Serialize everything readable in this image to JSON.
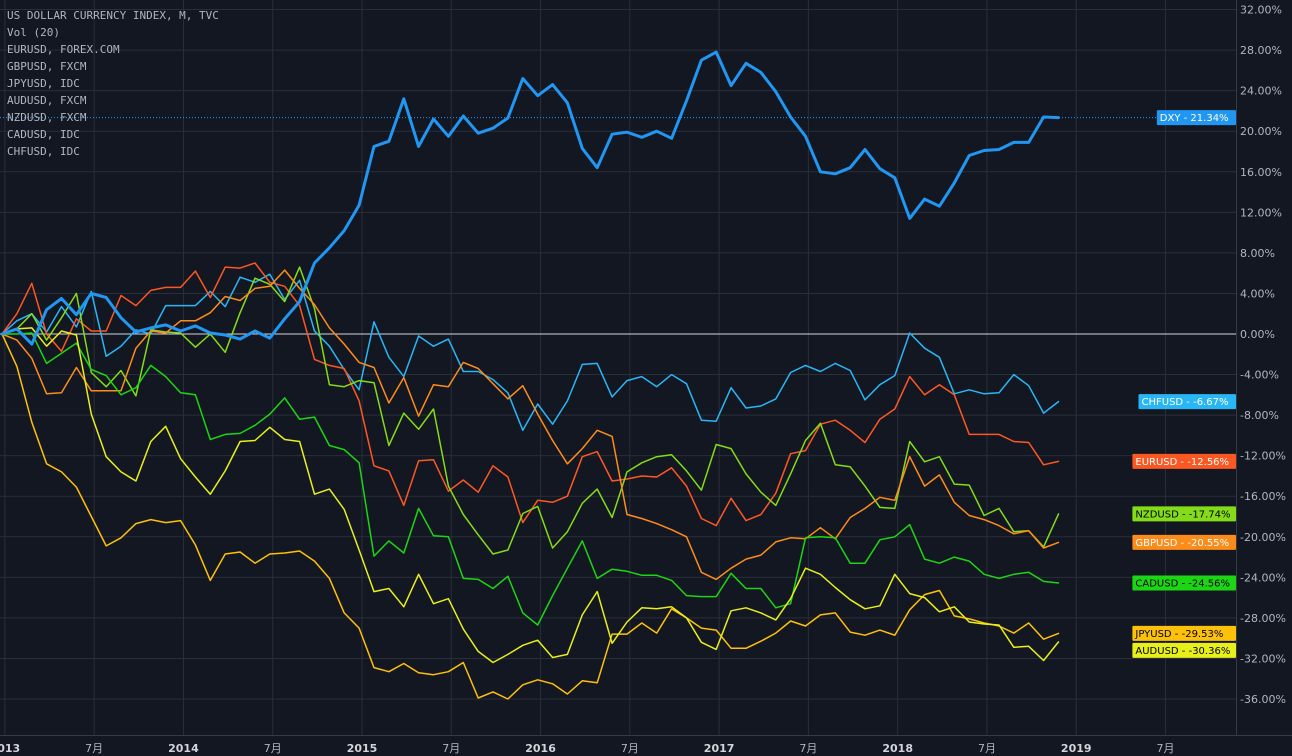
{
  "legend": {
    "lines": [
      "US DOLLAR CURRENCY INDEX, M, TVC",
      "Vol (20)",
      "EURUSD, FOREX.COM",
      "GBPUSD, FXCM",
      "JPYUSD, IDC",
      "AUDUSD, FXCM",
      "NZDUSD, FXCM",
      "CADUSD, IDC",
      "CHFUSD, IDC"
    ]
  },
  "chart_data": {
    "type": "line",
    "title": "US DOLLAR CURRENCY INDEX, M, TVC",
    "x_unit": "month",
    "x_start": "2012-12",
    "x_tick_labels": [
      "2013",
      "7月",
      "2014",
      "7月",
      "2015",
      "7月",
      "2016",
      "7月",
      "2017",
      "7月",
      "2018",
      "7月",
      "2019",
      "7月"
    ],
    "ylim": [
      -38,
      34
    ],
    "y_ticks": [
      32,
      28,
      24,
      20,
      16,
      12,
      8,
      4,
      0,
      -4,
      -8,
      -12,
      -16,
      -20,
      -24,
      -28,
      -32,
      -36
    ],
    "y_tick_labels": [
      "32.00%",
      "28.00%",
      "24.00%",
      "20.00%",
      "16.00%",
      "12.00%",
      "8.00%",
      "4.00%",
      "0.00%",
      "-4.00%",
      "-8.00%",
      "-12.00%",
      "-16.00%",
      "-20.00%",
      "-24.00%",
      "-28.00%",
      "-32.00%",
      "-36.00%"
    ],
    "zero_line": 0,
    "grid": true,
    "colors": {
      "background": "#131722",
      "grid": "#2a2e39",
      "zero_line": "#d1d4dc",
      "axis_text": "#b2b5be"
    },
    "series": [
      {
        "name": "DXY",
        "label": "21.34%",
        "color": "#2196f3",
        "badge_text": "#ffffff",
        "width": 3,
        "values": [
          0,
          0.5,
          -1.0,
          2.4,
          3.5,
          1.9,
          4.0,
          3.6,
          1.6,
          0.2,
          0.6,
          0.9,
          0.3,
          0.8,
          0.1,
          -0.1,
          -0.5,
          0.3,
          -0.4,
          1.5,
          3.2,
          7.0,
          8.5,
          10.2,
          12.7,
          18.5,
          19.0,
          23.2,
          18.5,
          21.2,
          19.5,
          21.5,
          19.8,
          20.3,
          21.3,
          25.2,
          23.5,
          24.6,
          22.8,
          18.3,
          16.4,
          19.7,
          19.9,
          19.4,
          20.0,
          19.3,
          23.0,
          27.0,
          27.8,
          24.5,
          26.7,
          25.8,
          23.9,
          21.4,
          19.5,
          16.0,
          15.8,
          16.4,
          18.2,
          16.3,
          15.4,
          11.4,
          13.3,
          12.6,
          14.9,
          17.6,
          18.1,
          18.2,
          18.9,
          18.9,
          21.4,
          21.34
        ]
      },
      {
        "name": "CHFUSD",
        "label": "-6.67%",
        "color": "#29b6f6",
        "badge_text": "#ffffff",
        "width": 1.5,
        "values": [
          0,
          1.3,
          2.0,
          0.2,
          2.7,
          0.7,
          4.2,
          -2.2,
          -1.2,
          0.4,
          0.0,
          2.8,
          2.8,
          2.8,
          4.2,
          2.7,
          5.6,
          5.1,
          5.9,
          3.4,
          5.3,
          0.3,
          -1.2,
          -3.5,
          -5.5,
          1.2,
          -2.3,
          -4.2,
          -0.2,
          -1.2,
          -0.5,
          -3.7,
          -3.7,
          -4.5,
          -5.8,
          -9.5,
          -6.9,
          -8.9,
          -6.6,
          -3.0,
          -2.9,
          -6.2,
          -4.6,
          -4.2,
          -5.2,
          -4.0,
          -4.9,
          -8.5,
          -8.6,
          -5.3,
          -7.3,
          -7.1,
          -6.4,
          -3.8,
          -3.1,
          -3.7,
          -2.9,
          -3.6,
          -6.5,
          -5.0,
          -4.1,
          0.1,
          -1.4,
          -2.3,
          -5.9,
          -5.5,
          -5.9,
          -5.8,
          -4.0,
          -5.1,
          -7.8,
          -6.67
        ]
      },
      {
        "name": "EURUSD",
        "label": "-12.56%",
        "color": "#ff5722",
        "badge_text": "#ffffff",
        "width": 1.5,
        "values": [
          0,
          2.0,
          5.0,
          0.0,
          -1.7,
          1.5,
          0.3,
          0.3,
          3.8,
          2.8,
          4.3,
          4.6,
          4.6,
          6.2,
          3.6,
          6.6,
          6.5,
          7.0,
          5.1,
          4.7,
          2.8,
          -2.5,
          -3.1,
          -3.4,
          -6.6,
          -13.0,
          -13.5,
          -16.9,
          -12.5,
          -12.4,
          -15.5,
          -14.4,
          -15.6,
          -13.0,
          -14.1,
          -18.6,
          -16.4,
          -16.6,
          -16.0,
          -12.1,
          -11.6,
          -14.5,
          -14.3,
          -14.0,
          -14.1,
          -13.2,
          -15.0,
          -18.2,
          -18.9,
          -16.2,
          -18.4,
          -17.8,
          -15.7,
          -11.8,
          -11.5,
          -8.9,
          -8.5,
          -9.5,
          -10.7,
          -8.4,
          -7.4,
          -4.2,
          -6.0,
          -5.0,
          -6.0,
          -9.9,
          -9.9,
          -9.9,
          -10.6,
          -10.7,
          -12.9,
          -12.56
        ]
      },
      {
        "name": "NZDUSD",
        "label": "-17.74%",
        "color": "#84dc17",
        "badge_text": "#000000",
        "width": 1.5,
        "values": [
          0,
          0.5,
          2.0,
          -0.6,
          1.6,
          4.0,
          -3.8,
          -5.2,
          -3.6,
          -6.1,
          0.4,
          0.2,
          0.1,
          -1.3,
          0.0,
          -1.8,
          2.1,
          5.5,
          4.9,
          3.2,
          6.6,
          2.5,
          -5.0,
          -5.2,
          -4.6,
          -4.8,
          -11.0,
          -7.8,
          -9.4,
          -7.4,
          -15.0,
          -17.8,
          -19.8,
          -21.7,
          -21.3,
          -17.7,
          -17.0,
          -21.1,
          -19.5,
          -16.7,
          -15.3,
          -18.1,
          -13.6,
          -12.7,
          -12.1,
          -11.9,
          -13.5,
          -15.4,
          -10.9,
          -11.3,
          -13.8,
          -15.6,
          -16.9,
          -13.8,
          -10.5,
          -8.8,
          -12.9,
          -13.1,
          -15.0,
          -17.1,
          -17.2,
          -10.6,
          -12.6,
          -12.1,
          -14.8,
          -14.9,
          -17.9,
          -17.2,
          -19.5,
          -19.4,
          -21.0,
          -17.74
        ]
      },
      {
        "name": "GBPUSD",
        "label": "-20.55%",
        "color": "#ff8c1a",
        "badge_text": "#ffffff",
        "width": 1.5,
        "values": [
          0,
          -0.6,
          -2.4,
          -5.9,
          -5.8,
          -3.3,
          -5.6,
          -5.6,
          -5.6,
          -1.4,
          0.3,
          0.1,
          1.3,
          1.3,
          2.1,
          3.7,
          3.3,
          4.5,
          4.7,
          6.3,
          4.5,
          2.9,
          0.6,
          -1.0,
          -2.8,
          -3.3,
          -6.8,
          -4.3,
          -8.1,
          -5.0,
          -5.2,
          -2.8,
          -3.4,
          -4.9,
          -6.4,
          -5.1,
          -7.9,
          -10.5,
          -12.8,
          -11.3,
          -9.5,
          -10.1,
          -17.8,
          -18.2,
          -18.7,
          -19.3,
          -20.0,
          -23.5,
          -24.2,
          -23.1,
          -22.2,
          -21.8,
          -20.5,
          -20.1,
          -20.2,
          -19.1,
          -20.2,
          -18.1,
          -17.2,
          -16.1,
          -16.4,
          -12.1,
          -15.0,
          -13.9,
          -16.6,
          -17.9,
          -18.3,
          -18.9,
          -19.7,
          -19.4,
          -21.1,
          -20.55
        ]
      },
      {
        "name": "CADUSD",
        "label": "-24.56%",
        "color": "#1cd613",
        "badge_text": "#000000",
        "width": 1.5,
        "values": [
          0,
          0.0,
          0.1,
          -2.9,
          -1.9,
          -0.9,
          -3.5,
          -4.1,
          -6.0,
          -5.3,
          -3.1,
          -4.2,
          -5.8,
          -6.0,
          -10.4,
          -9.9,
          -9.8,
          -9.0,
          -7.9,
          -6.3,
          -8.4,
          -8.2,
          -11.0,
          -11.4,
          -12.7,
          -21.9,
          -20.4,
          -21.6,
          -17.2,
          -19.9,
          -20.0,
          -24.1,
          -24.2,
          -25.1,
          -23.9,
          -27.5,
          -28.7,
          -25.8,
          -23.1,
          -20.4,
          -24.1,
          -23.2,
          -23.4,
          -23.8,
          -23.8,
          -24.3,
          -25.8,
          -25.9,
          -25.9,
          -23.6,
          -25.1,
          -25.1,
          -27.0,
          -26.6,
          -20.1,
          -20.0,
          -20.1,
          -22.6,
          -22.6,
          -20.3,
          -20.0,
          -18.8,
          -22.2,
          -22.6,
          -22.0,
          -22.4,
          -23.7,
          -24.1,
          -23.7,
          -23.5,
          -24.4,
          -24.56
        ]
      },
      {
        "name": "JPYUSD",
        "label": "-29.53%",
        "color": "#ffc107",
        "badge_text": "#000000",
        "width": 1.5,
        "values": [
          0,
          -3.2,
          -8.7,
          -12.8,
          -13.6,
          -15.1,
          -18.0,
          -20.9,
          -20.1,
          -18.7,
          -18.3,
          -18.6,
          -18.4,
          -20.8,
          -24.3,
          -21.7,
          -21.5,
          -22.6,
          -21.7,
          -21.6,
          -21.4,
          -22.4,
          -24.1,
          -27.5,
          -29.0,
          -32.9,
          -33.3,
          -32.5,
          -33.4,
          -33.6,
          -33.3,
          -32.4,
          -35.9,
          -35.3,
          -36.0,
          -34.6,
          -34.1,
          -34.5,
          -35.5,
          -34.2,
          -34.4,
          -29.6,
          -29.6,
          -28.5,
          -29.5,
          -27.1,
          -28.0,
          -29.0,
          -29.2,
          -31.0,
          -31.0,
          -30.3,
          -29.5,
          -28.3,
          -28.8,
          -27.7,
          -27.5,
          -29.4,
          -29.7,
          -29.2,
          -29.7,
          -27.2,
          -25.7,
          -25.3,
          -27.8,
          -28.1,
          -28.5,
          -28.8,
          -29.5,
          -28.5,
          -30.1,
          -29.53
        ]
      },
      {
        "name": "AUDUSD",
        "label": "-30.36%",
        "color": "#e8f01b",
        "badge_text": "#000000",
        "width": 1.5,
        "values": [
          0,
          0.5,
          0.6,
          -1.2,
          0.3,
          -0.1,
          -7.9,
          -12.1,
          -13.6,
          -14.5,
          -10.6,
          -9.1,
          -12.3,
          -14.1,
          -15.8,
          -13.5,
          -10.6,
          -10.5,
          -9.2,
          -10.4,
          -10.6,
          -15.8,
          -15.3,
          -17.3,
          -21.3,
          -25.4,
          -25.1,
          -26.9,
          -23.7,
          -26.6,
          -26.1,
          -29.1,
          -31.3,
          -32.4,
          -31.6,
          -30.7,
          -30.2,
          -31.9,
          -31.6,
          -27.7,
          -25.4,
          -30.5,
          -28.4,
          -27.0,
          -27.1,
          -26.9,
          -28.0,
          -30.4,
          -31.1,
          -27.3,
          -27.0,
          -27.5,
          -28.2,
          -26.1,
          -23.1,
          -23.7,
          -25.0,
          -26.2,
          -27.1,
          -26.8,
          -23.7,
          -25.6,
          -26.0,
          -27.4,
          -26.9,
          -28.4,
          -28.6,
          -28.7,
          -30.9,
          -30.8,
          -32.2,
          -30.36
        ]
      }
    ]
  }
}
